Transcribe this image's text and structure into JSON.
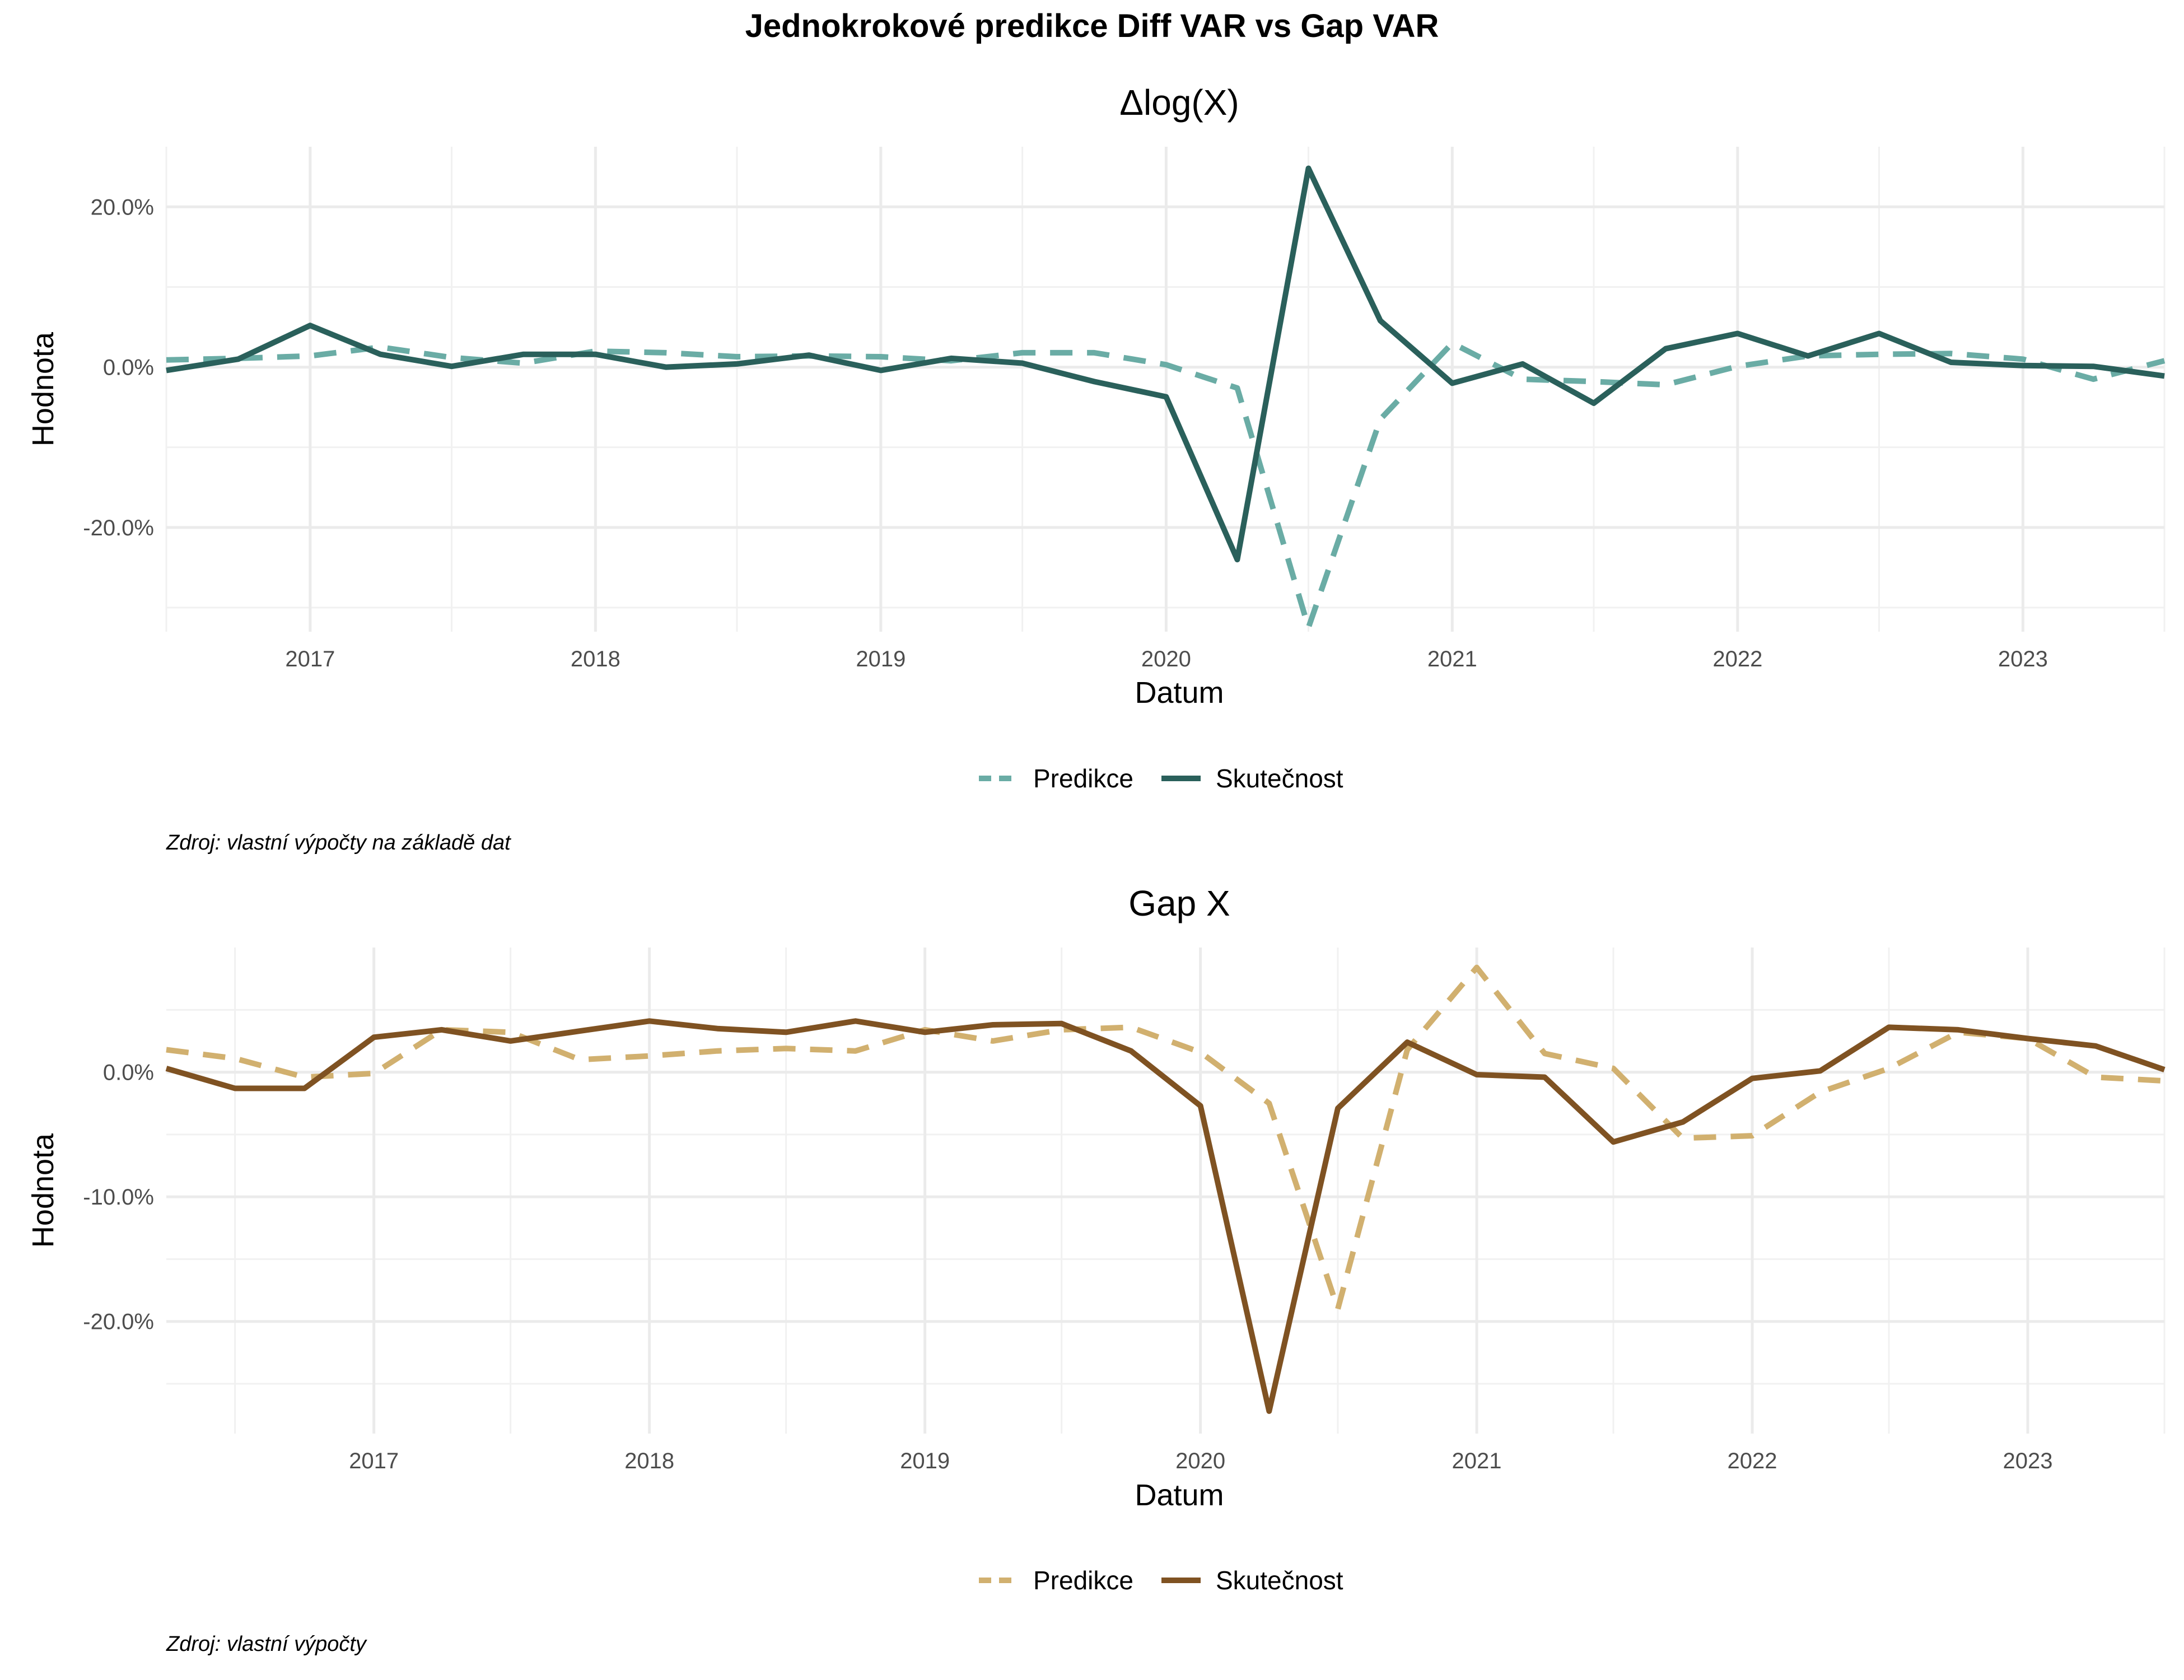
{
  "figure": {
    "title": "Jednokrokové predikce Diff VAR vs Gap VAR"
  },
  "colors": {
    "panel1_pred": "#6aaca5",
    "panel1_actual": "#2a605b",
    "panel2_pred": "#d1b06f",
    "panel2_actual": "#7f5222"
  },
  "chart_data": [
    {
      "type": "line",
      "title": "Δlog(X)",
      "xlabel": "Datum",
      "ylabel": "Hodnota",
      "x_ticks": [
        "2017",
        "2018",
        "2019",
        "2020",
        "2021",
        "2022",
        "2023"
      ],
      "y_ticks": [
        "-20.0%",
        "0.0%",
        "20.0%"
      ],
      "y_tick_values": [
        -20,
        0,
        20
      ],
      "xlim": [
        "2016-07-01",
        "2023-07-01"
      ],
      "ylim": [
        -33,
        27.5
      ],
      "grid": true,
      "legend_position": "bottom",
      "x": [
        "2016-07-01",
        "2016-10-01",
        "2017-01-01",
        "2017-04-01",
        "2017-07-01",
        "2017-10-01",
        "2018-01-01",
        "2018-04-01",
        "2018-07-01",
        "2018-10-01",
        "2019-01-01",
        "2019-04-01",
        "2019-07-01",
        "2019-10-01",
        "2020-01-01",
        "2020-04-01",
        "2020-07-01",
        "2020-10-01",
        "2021-01-01",
        "2021-04-01",
        "2021-07-01",
        "2021-10-01",
        "2022-01-01",
        "2022-04-01",
        "2022-07-01",
        "2022-10-01",
        "2023-01-01",
        "2023-04-01",
        "2023-07-01"
      ],
      "series": [
        {
          "name": "Predikce",
          "style": "dashed",
          "values": [
            0.9,
            1.1,
            1.4,
            2.5,
            1.2,
            0.5,
            2.0,
            1.8,
            1.3,
            1.4,
            1.3,
            0.8,
            1.8,
            1.8,
            0.3,
            -2.6,
            -32.5,
            -6.5,
            3.0,
            -1.5,
            -1.8,
            -2.2,
            0.1,
            1.4,
            1.6,
            1.7,
            1.0,
            -1.5,
            0.8
          ]
        },
        {
          "name": "Skutečnost",
          "style": "solid",
          "values": [
            -0.4,
            1.0,
            5.2,
            1.6,
            0.1,
            1.6,
            1.6,
            0.0,
            0.4,
            1.5,
            -0.4,
            1.1,
            0.5,
            -1.8,
            -3.7,
            -24.0,
            24.8,
            5.8,
            -2.0,
            0.4,
            -4.5,
            2.3,
            4.2,
            1.4,
            4.2,
            0.6,
            0.2,
            0.1,
            -1.1
          ]
        }
      ],
      "caption": "Zdroj: vlastní výpočty na základě dat"
    },
    {
      "type": "line",
      "title": "Gap X",
      "xlabel": "Datum",
      "ylabel": "Hodnota",
      "x_ticks": [
        "2017",
        "2018",
        "2019",
        "2020",
        "2021",
        "2022",
        "2023"
      ],
      "y_ticks": [
        "-20.0%",
        "-10.0%",
        "0.0%"
      ],
      "y_tick_values": [
        -20,
        -10,
        0
      ],
      "xlim": [
        "2016-04-01",
        "2023-07-01"
      ],
      "ylim": [
        -29,
        10
      ],
      "grid": true,
      "legend_position": "bottom",
      "x": [
        "2016-04-01",
        "2016-07-01",
        "2016-10-01",
        "2017-01-01",
        "2017-04-01",
        "2017-07-01",
        "2017-10-01",
        "2018-01-01",
        "2018-04-01",
        "2018-07-01",
        "2018-10-01",
        "2019-01-01",
        "2019-04-01",
        "2019-07-01",
        "2019-10-01",
        "2020-01-01",
        "2020-04-01",
        "2020-07-01",
        "2020-10-01",
        "2021-01-01",
        "2021-04-01",
        "2021-07-01",
        "2021-10-01",
        "2022-01-01",
        "2022-04-01",
        "2022-07-01",
        "2022-10-01",
        "2023-01-01",
        "2023-04-01",
        "2023-07-01"
      ],
      "series": [
        {
          "name": "Predikce",
          "style": "dashed",
          "values": [
            1.8,
            1.1,
            -0.4,
            -0.1,
            3.4,
            3.2,
            1.0,
            1.3,
            1.7,
            1.9,
            1.7,
            3.4,
            2.5,
            3.4,
            3.6,
            1.6,
            -2.5,
            -19.0,
            1.8,
            8.4,
            1.5,
            0.3,
            -5.3,
            -5.1,
            -1.6,
            0.3,
            3.2,
            2.7,
            -0.4,
            -0.7
          ]
        },
        {
          "name": "Skutečnost",
          "style": "solid",
          "values": [
            0.3,
            -1.3,
            -1.3,
            2.8,
            3.4,
            2.5,
            3.3,
            4.1,
            3.5,
            3.2,
            4.1,
            3.2,
            3.8,
            3.9,
            1.7,
            -2.7,
            -27.2,
            -2.9,
            2.4,
            -0.2,
            -0.4,
            -5.6,
            -4.0,
            -0.5,
            0.1,
            3.6,
            3.4,
            2.7,
            2.1,
            0.2
          ]
        }
      ],
      "caption": "Zdroj: vlastní výpočty"
    }
  ]
}
